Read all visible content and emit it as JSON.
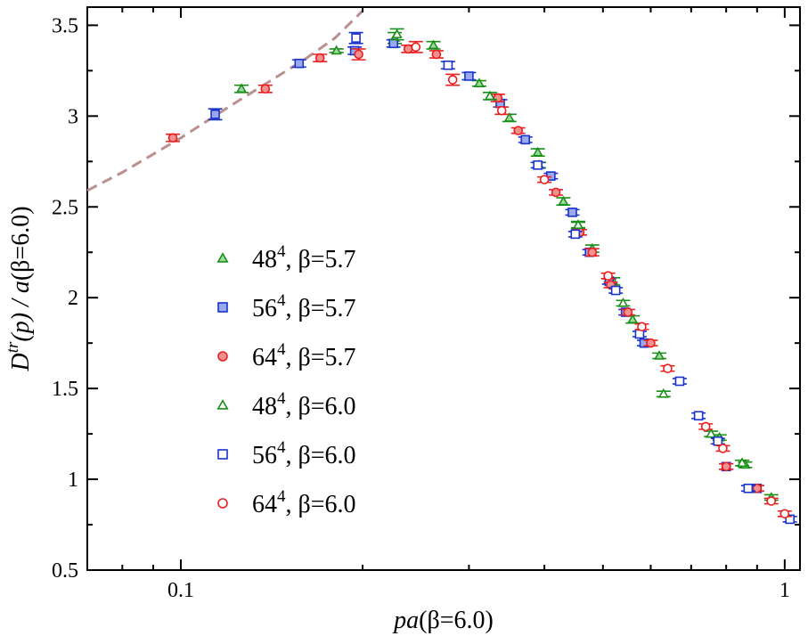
{
  "chart_data": {
    "type": "scatter",
    "xlabel": {
      "main": "pa",
      "rest": "(β=6.0)"
    },
    "ylabel": {
      "D": "D",
      "sup": "tr",
      "mid": "(p) / ",
      "a": "a",
      "rest": "(β=6.0)"
    },
    "xscale": "log",
    "xlim": [
      0.07,
      1.06
    ],
    "ylim": [
      0.5,
      3.6
    ],
    "xticks": [
      {
        "v": 0.1,
        "label": "0.1"
      },
      {
        "v": 1,
        "label": "1"
      }
    ],
    "yticks": [
      {
        "v": 0.5,
        "label": "0.5"
      },
      {
        "v": 1,
        "label": "1"
      },
      {
        "v": 1.5,
        "label": "1.5"
      },
      {
        "v": 2,
        "label": "2"
      },
      {
        "v": 2.5,
        "label": "2.5"
      },
      {
        "v": 3,
        "label": "3"
      },
      {
        "v": 3.5,
        "label": "3.5"
      }
    ],
    "grid": false,
    "legend_position": "center-left",
    "fit_curve": {
      "color": "#bc8f8f",
      "style": "dashed",
      "points": [
        [
          0.07,
          2.59
        ],
        [
          0.08,
          2.69
        ],
        [
          0.1,
          2.88
        ],
        [
          0.12,
          3.05
        ],
        [
          0.14,
          3.19
        ],
        [
          0.16,
          3.31
        ],
        [
          0.18,
          3.43
        ],
        [
          0.2,
          3.58
        ]
      ]
    },
    "series": [
      {
        "name": "48",
        "sup": "4",
        "beta": ", β=5.7",
        "marker": "triangle",
        "filled": true,
        "color": "#1a8f1a",
        "points": [
          [
            0.126,
            3.15,
            0.02
          ],
          [
            0.181,
            3.36,
            0.01
          ],
          [
            0.226,
            3.43,
            0.03
          ],
          [
            0.262,
            3.39,
            0.02
          ],
          [
            0.312,
            3.18,
            0.015
          ],
          [
            0.35,
            2.99,
            0.02
          ],
          [
            0.39,
            2.8,
            0.02
          ],
          [
            0.43,
            2.53,
            0.02
          ],
          [
            0.455,
            2.4,
            0.02
          ],
          [
            0.48,
            2.27,
            0.02
          ],
          [
            0.52,
            2.09,
            0.02
          ],
          [
            0.56,
            1.88,
            0.02
          ],
          [
            0.62,
            1.68,
            0.015
          ],
          [
            0.78,
            1.23,
            0.015
          ],
          [
            0.86,
            1.08,
            0.015
          ],
          [
            0.95,
            0.9,
            0.015
          ]
        ]
      },
      {
        "name": "56",
        "sup": "4",
        "beta": ", β=5.7",
        "marker": "square",
        "filled": true,
        "color": "#1a33cc",
        "points": [
          [
            0.114,
            3.01,
            0.03
          ],
          [
            0.157,
            3.29,
            0.02
          ],
          [
            0.194,
            3.36,
            0.02
          ],
          [
            0.225,
            3.4,
            0.02
          ],
          [
            0.3,
            3.22,
            0.02
          ],
          [
            0.338,
            3.07,
            0.02
          ],
          [
            0.372,
            2.87,
            0.015
          ],
          [
            0.41,
            2.67,
            0.015
          ],
          [
            0.445,
            2.47,
            0.015
          ],
          [
            0.475,
            2.25,
            0.015
          ],
          [
            0.512,
            2.09,
            0.015
          ],
          [
            0.545,
            1.92,
            0.015
          ],
          [
            0.585,
            1.75,
            0.015
          ],
          [
            0.8,
            1.07,
            0.015
          ],
          [
            0.9,
            0.95,
            0.015
          ]
        ]
      },
      {
        "name": "64",
        "sup": "4",
        "beta": ", β=5.7",
        "marker": "circle",
        "filled": true,
        "color": "#e82020",
        "points": [
          [
            0.097,
            2.88,
            0.02
          ],
          [
            0.138,
            3.15,
            0.02
          ],
          [
            0.17,
            3.32,
            0.02
          ],
          [
            0.197,
            3.34,
            0.03
          ],
          [
            0.238,
            3.37,
            0.02
          ],
          [
            0.265,
            3.34,
            0.02
          ],
          [
            0.335,
            3.1,
            0.02
          ],
          [
            0.362,
            2.92,
            0.015
          ],
          [
            0.418,
            2.58,
            0.015
          ],
          [
            0.458,
            2.36,
            0.015
          ],
          [
            0.48,
            2.25,
            0.02
          ],
          [
            0.515,
            2.07,
            0.015
          ],
          [
            0.55,
            1.92,
            0.015
          ],
          [
            0.6,
            1.75,
            0.015
          ],
          [
            0.8,
            1.07,
            0.015
          ],
          [
            0.9,
            0.95,
            0.015
          ]
        ]
      },
      {
        "name": "48",
        "sup": "4",
        "beta": ", β=6.0",
        "marker": "triangle",
        "filled": false,
        "color": "#1a8f1a",
        "points": [
          [
            0.228,
            3.45,
            0.03
          ],
          [
            0.325,
            3.11,
            0.02
          ],
          [
            0.392,
            2.73,
            0.015
          ],
          [
            0.455,
            2.4,
            0.015
          ],
          [
            0.54,
            1.97,
            0.015
          ],
          [
            0.63,
            1.47,
            0.015
          ],
          [
            0.755,
            1.25,
            0.015
          ],
          [
            0.85,
            1.09,
            0.015
          ]
        ]
      },
      {
        "name": "56",
        "sup": "4",
        "beta": ", β=6.0",
        "marker": "square",
        "filled": false,
        "color": "#1a33cc",
        "points": [
          [
            0.195,
            3.43,
            0.03
          ],
          [
            0.277,
            3.28,
            0.02
          ],
          [
            0.39,
            2.73,
            0.015
          ],
          [
            0.45,
            2.35,
            0.015
          ],
          [
            0.525,
            2.04,
            0.015
          ],
          [
            0.575,
            1.8,
            0.015
          ],
          [
            0.67,
            1.54,
            0.015
          ],
          [
            0.72,
            1.35,
            0.015
          ],
          [
            0.775,
            1.21,
            0.015
          ],
          [
            0.87,
            0.95,
            0.015
          ],
          [
            1.02,
            0.78,
            0.015
          ]
        ]
      },
      {
        "name": "64",
        "sup": "4",
        "beta": ", β=6.0",
        "marker": "circle",
        "filled": false,
        "color": "#e82020",
        "points": [
          [
            0.245,
            3.38,
            0.03
          ],
          [
            0.282,
            3.2,
            0.03
          ],
          [
            0.34,
            3.03,
            0.02
          ],
          [
            0.4,
            2.65,
            0.015
          ],
          [
            0.51,
            2.12,
            0.015
          ],
          [
            0.58,
            1.84,
            0.015
          ],
          [
            0.64,
            1.61,
            0.015
          ],
          [
            0.74,
            1.29,
            0.015
          ],
          [
            0.79,
            1.17,
            0.015
          ],
          [
            0.95,
            0.88,
            0.015
          ],
          [
            1.0,
            0.81,
            0.015
          ]
        ]
      }
    ]
  }
}
